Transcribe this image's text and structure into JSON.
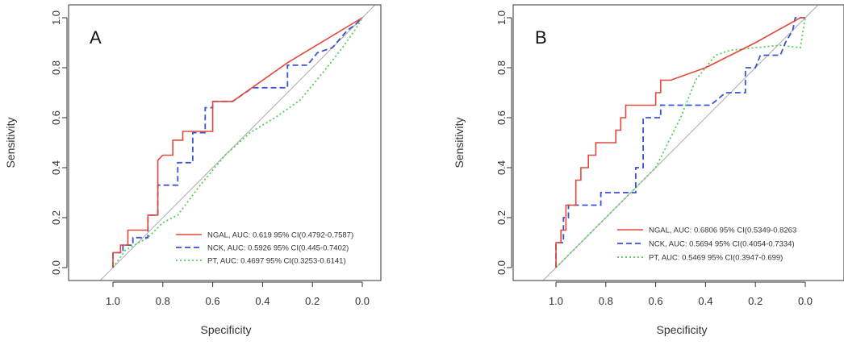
{
  "chart_data": [
    {
      "type": "line",
      "panel_label": "A",
      "xlabel": "Specificity",
      "ylabel": "Sensitivity",
      "xlim": [
        1.0,
        0.0
      ],
      "ylim": [
        0.0,
        1.0
      ],
      "x_ticks": [
        "1.0",
        "0.8",
        "0.6",
        "0.4",
        "0.2",
        "0.0"
      ],
      "y_ticks": [
        "0.0",
        "0.2",
        "0.4",
        "0.6",
        "0.8",
        "1.0"
      ],
      "grid": false,
      "diagonal_reference": true,
      "legend_position": "bottom-right",
      "colors": {
        "NGAL": "#e04a3a",
        "NCK": "#3a52d4",
        "PT": "#55cc55",
        "diagonal": "#aaaaaa"
      },
      "series": [
        {
          "key": "NGAL",
          "label": "NGAL, AUC: 0.619 95% CI(0.4792-0.7587)",
          "style": "solid",
          "points": [
            [
              1.0,
              0.0
            ],
            [
              1.0,
              0.06
            ],
            [
              0.97,
              0.06
            ],
            [
              0.97,
              0.09
            ],
            [
              0.94,
              0.09
            ],
            [
              0.94,
              0.15
            ],
            [
              0.86,
              0.15
            ],
            [
              0.86,
              0.21
            ],
            [
              0.82,
              0.21
            ],
            [
              0.82,
              0.43
            ],
            [
              0.8,
              0.45
            ],
            [
              0.76,
              0.45
            ],
            [
              0.76,
              0.51
            ],
            [
              0.72,
              0.51
            ],
            [
              0.72,
              0.545
            ],
            [
              0.6,
              0.545
            ],
            [
              0.6,
              0.665
            ],
            [
              0.52,
              0.665
            ],
            [
              0.3,
              0.82
            ],
            [
              0.0,
              1.0
            ]
          ]
        },
        {
          "key": "NCK",
          "label": "NCK, AUC: 0.5926 95% CI(0.445-0.7402)",
          "style": "dashed",
          "points": [
            [
              1.0,
              0.0
            ],
            [
              1.0,
              0.06
            ],
            [
              0.96,
              0.06
            ],
            [
              0.96,
              0.09
            ],
            [
              0.92,
              0.09
            ],
            [
              0.92,
              0.12
            ],
            [
              0.86,
              0.12
            ],
            [
              0.86,
              0.21
            ],
            [
              0.82,
              0.21
            ],
            [
              0.82,
              0.33
            ],
            [
              0.74,
              0.33
            ],
            [
              0.74,
              0.42
            ],
            [
              0.68,
              0.42
            ],
            [
              0.68,
              0.54
            ],
            [
              0.63,
              0.54
            ],
            [
              0.63,
              0.64
            ],
            [
              0.6,
              0.64
            ],
            [
              0.6,
              0.665
            ],
            [
              0.52,
              0.665
            ],
            [
              0.44,
              0.72
            ],
            [
              0.3,
              0.72
            ],
            [
              0.3,
              0.81
            ],
            [
              0.22,
              0.81
            ],
            [
              0.18,
              0.86
            ],
            [
              0.12,
              0.88
            ],
            [
              0.06,
              0.95
            ],
            [
              0.03,
              0.97
            ],
            [
              0.0,
              1.0
            ]
          ]
        },
        {
          "key": "PT",
          "label": "PT, AUC: 0.4697 95% CI(0.3253-0.6141)",
          "style": "dotted",
          "points": [
            [
              1.0,
              0.0
            ],
            [
              0.95,
              0.07
            ],
            [
              0.86,
              0.12
            ],
            [
              0.8,
              0.18
            ],
            [
              0.74,
              0.21
            ],
            [
              0.65,
              0.33
            ],
            [
              0.55,
              0.45
            ],
            [
              0.45,
              0.54
            ],
            [
              0.35,
              0.6
            ],
            [
              0.25,
              0.67
            ],
            [
              0.2,
              0.73
            ],
            [
              0.15,
              0.79
            ],
            [
              0.08,
              0.88
            ],
            [
              0.03,
              0.95
            ],
            [
              0.0,
              1.0
            ]
          ]
        }
      ]
    },
    {
      "type": "line",
      "panel_label": "B",
      "xlabel": "Specificity",
      "ylabel": "Sensitivity",
      "xlim": [
        1.0,
        0.0
      ],
      "ylim": [
        0.0,
        1.0
      ],
      "x_ticks": [
        "1.0",
        "0.8",
        "0.6",
        "0.4",
        "0.2",
        "0.0"
      ],
      "y_ticks": [
        "0.0",
        "0.2",
        "0.4",
        "0.6",
        "0.8",
        "1.0"
      ],
      "grid": false,
      "diagonal_reference": true,
      "legend_position": "bottom-right",
      "colors": {
        "NGAL": "#e04a3a",
        "NCK": "#3a52d4",
        "PT": "#55cc55",
        "diagonal": "#aaaaaa"
      },
      "series": [
        {
          "key": "NGAL",
          "label": "NGAL, AUC: 0.6806 95% CI(0.5349-0.8263",
          "style": "solid",
          "points": [
            [
              1.0,
              0.0
            ],
            [
              1.0,
              0.1
            ],
            [
              0.98,
              0.1
            ],
            [
              0.98,
              0.15
            ],
            [
              0.96,
              0.15
            ],
            [
              0.96,
              0.25
            ],
            [
              0.92,
              0.25
            ],
            [
              0.92,
              0.35
            ],
            [
              0.9,
              0.35
            ],
            [
              0.9,
              0.4
            ],
            [
              0.87,
              0.4
            ],
            [
              0.87,
              0.45
            ],
            [
              0.84,
              0.45
            ],
            [
              0.84,
              0.5
            ],
            [
              0.76,
              0.5
            ],
            [
              0.76,
              0.55
            ],
            [
              0.74,
              0.55
            ],
            [
              0.74,
              0.6
            ],
            [
              0.72,
              0.6
            ],
            [
              0.72,
              0.65
            ],
            [
              0.6,
              0.65
            ],
            [
              0.6,
              0.7
            ],
            [
              0.58,
              0.7
            ],
            [
              0.58,
              0.75
            ],
            [
              0.54,
              0.75
            ],
            [
              0.4,
              0.8
            ],
            [
              0.2,
              0.9
            ],
            [
              0.02,
              1.0
            ],
            [
              0.0,
              1.0
            ]
          ]
        },
        {
          "key": "NCK",
          "label": "NCK, AUC: 0.5694 95% CI(0.4054-0.7334)",
          "style": "dashed",
          "points": [
            [
              1.0,
              0.0
            ],
            [
              1.0,
              0.1
            ],
            [
              0.97,
              0.1
            ],
            [
              0.97,
              0.2
            ],
            [
              0.95,
              0.2
            ],
            [
              0.95,
              0.25
            ],
            [
              0.9,
              0.25
            ],
            [
              0.9,
              0.25
            ],
            [
              0.82,
              0.25
            ],
            [
              0.82,
              0.3
            ],
            [
              0.68,
              0.3
            ],
            [
              0.68,
              0.4
            ],
            [
              0.65,
              0.4
            ],
            [
              0.65,
              0.6
            ],
            [
              0.58,
              0.6
            ],
            [
              0.58,
              0.65
            ],
            [
              0.38,
              0.65
            ],
            [
              0.32,
              0.7
            ],
            [
              0.24,
              0.7
            ],
            [
              0.24,
              0.8
            ],
            [
              0.2,
              0.8
            ],
            [
              0.18,
              0.85
            ],
            [
              0.1,
              0.85
            ],
            [
              0.08,
              0.9
            ],
            [
              0.05,
              0.95
            ],
            [
              0.04,
              1.0
            ],
            [
              0.0,
              1.0
            ]
          ]
        },
        {
          "key": "PT",
          "label": "PT, AUC: 0.5469 95% CI(0.3947-0.699)",
          "style": "dotted",
          "points": [
            [
              1.0,
              0.0
            ],
            [
              0.9,
              0.1
            ],
            [
              0.8,
              0.2
            ],
            [
              0.7,
              0.3
            ],
            [
              0.6,
              0.4
            ],
            [
              0.5,
              0.6
            ],
            [
              0.44,
              0.75
            ],
            [
              0.36,
              0.85
            ],
            [
              0.3,
              0.87
            ],
            [
              0.2,
              0.88
            ],
            [
              0.1,
              0.89
            ],
            [
              0.02,
              0.88
            ],
            [
              0.0,
              1.0
            ]
          ]
        }
      ]
    }
  ]
}
